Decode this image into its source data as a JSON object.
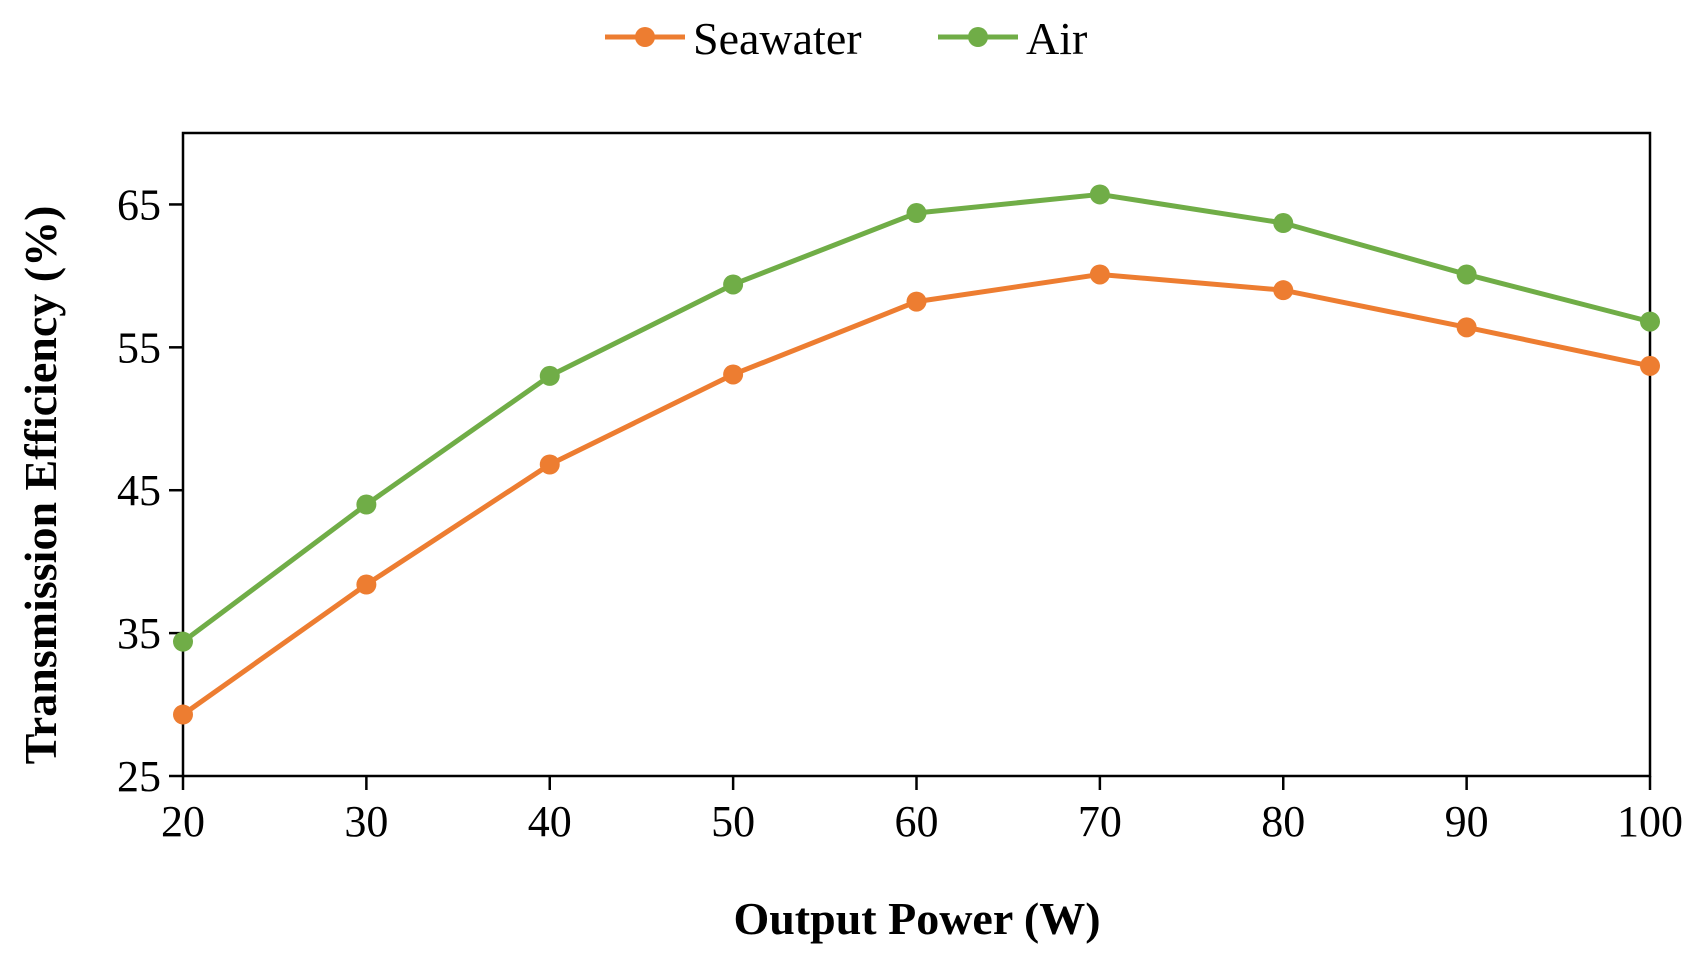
{
  "chart_data": {
    "type": "line",
    "title": "",
    "xlabel": "Output Power (W)",
    "ylabel": "Transmission Efficiency (%)",
    "x": [
      20,
      30,
      40,
      50,
      60,
      70,
      80,
      90,
      100
    ],
    "x_ticks": [
      "20",
      "30",
      "40",
      "50",
      "60",
      "70",
      "80",
      "90",
      "100"
    ],
    "xlim": [
      20,
      100
    ],
    "y_ticks": [
      "25",
      "35",
      "45",
      "55",
      "65"
    ],
    "ylim": [
      25,
      70
    ],
    "grid": false,
    "legend_position": "top-center",
    "series": [
      {
        "name": "Seawater",
        "color": "#ED7D31",
        "values": [
          29.3,
          38.4,
          46.8,
          53.1,
          58.2,
          60.1,
          59.0,
          56.4,
          53.7
        ]
      },
      {
        "name": "Air",
        "color": "#70AD47",
        "values": [
          34.4,
          44.0,
          53.0,
          59.4,
          64.4,
          65.7,
          63.7,
          60.1,
          56.8
        ]
      }
    ]
  }
}
